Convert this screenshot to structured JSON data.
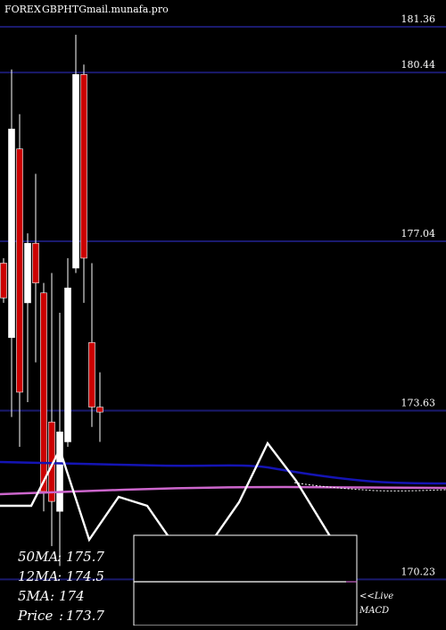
{
  "header": {
    "market": "FOREX",
    "symbol": "GBPHTG",
    "site": "mail.munafa.pro"
  },
  "chart_data": {
    "type": "candlestick",
    "ylim": [
      169.3,
      181.9
    ],
    "price_levels": [
      181.36,
      180.44,
      177.04,
      173.63,
      170.23
    ],
    "candles": [
      {
        "open": 176.6,
        "close": 175.9,
        "high": 176.7,
        "low": 175.8
      },
      {
        "open": 175.1,
        "close": 179.3,
        "high": 180.5,
        "low": 173.5
      },
      {
        "open": 178.9,
        "close": 174.0,
        "high": 179.6,
        "low": 172.9
      },
      {
        "open": 175.8,
        "close": 177.0,
        "high": 177.2,
        "low": 173.8
      },
      {
        "open": 177.0,
        "close": 176.2,
        "high": 178.4,
        "low": 174.6
      },
      {
        "open": 176.0,
        "close": 172.0,
        "high": 176.2,
        "low": 171.6
      },
      {
        "open": 173.4,
        "close": 171.8,
        "high": 176.4,
        "low": 170.9
      },
      {
        "open": 171.6,
        "close": 173.2,
        "high": 175.6,
        "low": 170.5
      },
      {
        "open": 173.0,
        "close": 176.1,
        "high": 176.7,
        "low": 172.9
      },
      {
        "open": 176.5,
        "close": 180.4,
        "high": 181.2,
        "low": 176.4
      },
      {
        "open": 180.4,
        "close": 176.7,
        "high": 180.6,
        "low": 175.8
      },
      {
        "open": 175.0,
        "close": 173.7,
        "high": 176.6,
        "low": 173.3
      },
      {
        "open": 173.7,
        "close": 173.6,
        "high": 174.4,
        "low": 173.0
      }
    ],
    "moving_averages": {
      "ma50": 175.7,
      "ma12": 174.5,
      "ma5": 174,
      "price": 173.7
    },
    "colors": {
      "up": "#ffffff",
      "down": "#cc0000",
      "level_line": "#1a1a6e",
      "ma_blue": "#1414b4",
      "ma_pink": "#cc66cc",
      "indicator": "#ffffff"
    }
  },
  "stats": {
    "ma50_label": "50MA",
    "ma50_value": "175.7",
    "ma12_label": "12MA",
    "ma12_value": "174.5",
    "ma5_label": "5MA",
    "ma5_value": "174",
    "price_label": "Price",
    "price_value": "173.7"
  },
  "macd_note": {
    "line1": "<<Live",
    "line2": "MACD"
  }
}
